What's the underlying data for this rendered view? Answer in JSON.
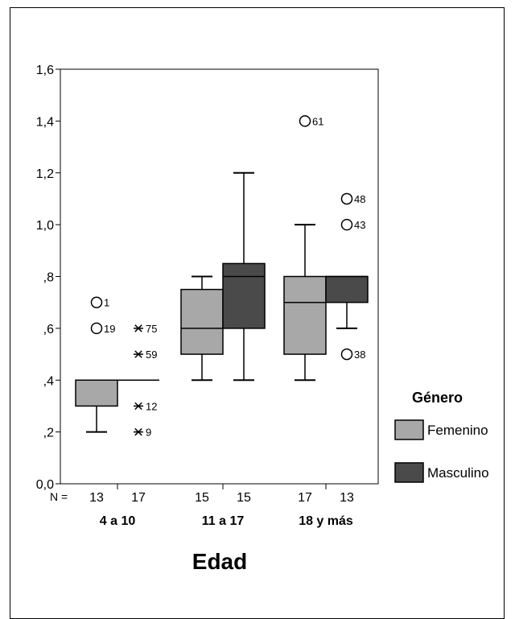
{
  "chart_data": {
    "type": "boxplot",
    "xlabel": "Edad",
    "ylabel": "",
    "ylim": [
      0,
      1.6
    ],
    "yticks": [
      0,
      0.2,
      0.4,
      0.6,
      0.8,
      1.0,
      1.2,
      1.4,
      1.6
    ],
    "ytick_labels": [
      "0,0",
      ",2",
      ",4",
      ",6",
      ",8",
      "1,0",
      "1,2",
      "1,4",
      "1,6"
    ],
    "n_label": "N =",
    "categories": [
      "4 a 10",
      "11 a 17",
      "18 y más"
    ],
    "legend_title": "Género",
    "legend_position": "right",
    "series": [
      {
        "name": "Femenino",
        "color": "#a8a8a8",
        "n": [
          "13",
          "15",
          "17"
        ],
        "boxes": [
          {
            "q1": 0.3,
            "median": 0.4,
            "q3": 0.4,
            "whisker_low": 0.2,
            "whisker_high": 0.4
          },
          {
            "q1": 0.5,
            "median": 0.6,
            "q3": 0.75,
            "whisker_low": 0.4,
            "whisker_high": 0.8
          },
          {
            "q1": 0.5,
            "median": 0.7,
            "q3": 0.8,
            "whisker_low": 0.4,
            "whisker_high": 1.0
          }
        ],
        "outliers": [
          {
            "category": 0,
            "value": 0.7,
            "label": "1",
            "symbol": "circle"
          },
          {
            "category": 0,
            "value": 0.6,
            "label": "19",
            "symbol": "circle"
          },
          {
            "category": 2,
            "value": 1.4,
            "label": "61",
            "symbol": "circle"
          }
        ]
      },
      {
        "name": "Masculino",
        "color": "#4a4a4a",
        "n": [
          "17",
          "15",
          "13"
        ],
        "boxes": [
          {
            "q1": 0.4,
            "median": 0.4,
            "q3": 0.4,
            "whisker_low": 0.4,
            "whisker_high": 0.4
          },
          {
            "q1": 0.6,
            "median": 0.8,
            "q3": 0.85,
            "whisker_low": 0.4,
            "whisker_high": 1.2
          },
          {
            "q1": 0.7,
            "median": 0.8,
            "q3": 0.8,
            "whisker_low": 0.6,
            "whisker_high": 0.8
          }
        ],
        "outliers": [
          {
            "category": 0,
            "value": 0.6,
            "label": "75",
            "symbol": "star"
          },
          {
            "category": 0,
            "value": 0.5,
            "label": "59",
            "symbol": "star"
          },
          {
            "category": 0,
            "value": 0.3,
            "label": "12",
            "symbol": "star"
          },
          {
            "category": 0,
            "value": 0.2,
            "label": "9",
            "symbol": "star"
          },
          {
            "category": 2,
            "value": 1.1,
            "label": "48",
            "symbol": "circle"
          },
          {
            "category": 2,
            "value": 1.0,
            "label": "43",
            "symbol": "circle"
          },
          {
            "category": 2,
            "value": 0.5,
            "label": "38",
            "symbol": "circle"
          }
        ]
      }
    ]
  }
}
